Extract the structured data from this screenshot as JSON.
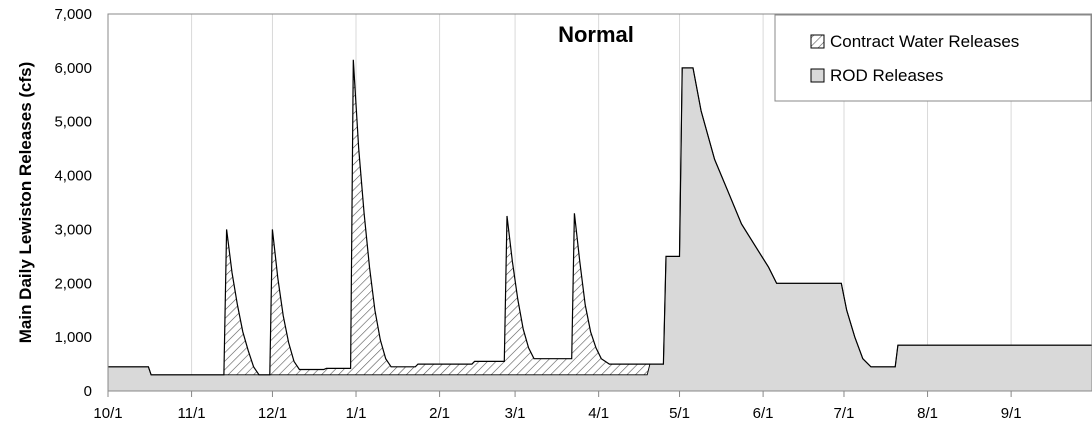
{
  "chart_data": {
    "type": "area",
    "title": "Normal",
    "ylabel": "Main Daily Lewiston Releases (cfs)",
    "xlabel": "",
    "x_tick_labels": [
      "10/1",
      "11/1",
      "12/1",
      "1/1",
      "2/1",
      "3/1",
      "4/1",
      "5/1",
      "6/1",
      "7/1",
      "8/1",
      "9/1"
    ],
    "x_tick_days": [
      0,
      31,
      61,
      92,
      123,
      151,
      182,
      212,
      243,
      273,
      304,
      335
    ],
    "xlim_days": [
      0,
      365
    ],
    "ylim": [
      0,
      7000
    ],
    "y_ticks": [
      0,
      1000,
      2000,
      3000,
      4000,
      5000,
      6000,
      7000
    ],
    "y_tick_labels": [
      "0",
      "1,000",
      "2,000",
      "3,000",
      "4,000",
      "5,000",
      "6,000",
      "7,000"
    ],
    "grid": "vertical",
    "legend_position": "top-right",
    "series": [
      {
        "name": "ROD Releases",
        "fill_color": "#d9d9d9",
        "pattern": "solid",
        "points": [
          [
            0,
            450
          ],
          [
            15,
            450
          ],
          [
            16,
            300
          ],
          [
            200,
            300
          ],
          [
            201,
            500
          ],
          [
            206,
            500
          ],
          [
            207,
            2500
          ],
          [
            212,
            2500
          ],
          [
            213,
            6000
          ],
          [
            217,
            6000
          ],
          [
            220,
            5200
          ],
          [
            225,
            4300
          ],
          [
            230,
            3700
          ],
          [
            235,
            3100
          ],
          [
            240,
            2700
          ],
          [
            245,
            2300
          ],
          [
            248,
            2000
          ],
          [
            272,
            2000
          ],
          [
            274,
            1500
          ],
          [
            277,
            1000
          ],
          [
            280,
            600
          ],
          [
            283,
            450
          ],
          [
            292,
            450
          ],
          [
            293,
            850
          ],
          [
            365,
            850
          ]
        ]
      },
      {
        "name": "Contract Water Releases",
        "fill_color": "#ffffff",
        "pattern": "hatched",
        "points": [
          [
            0,
            450
          ],
          [
            15,
            450
          ],
          [
            16,
            300
          ],
          [
            43,
            300
          ],
          [
            44,
            3000
          ],
          [
            46,
            2200
          ],
          [
            48,
            1600
          ],
          [
            50,
            1100
          ],
          [
            52,
            750
          ],
          [
            54,
            450
          ],
          [
            56,
            300
          ],
          [
            60,
            300
          ],
          [
            61,
            3000
          ],
          [
            63,
            2100
          ],
          [
            65,
            1400
          ],
          [
            67,
            900
          ],
          [
            69,
            550
          ],
          [
            71,
            400
          ],
          [
            80,
            400
          ],
          [
            81,
            420
          ],
          [
            90,
            420
          ],
          [
            91,
            6150
          ],
          [
            93,
            4500
          ],
          [
            95,
            3300
          ],
          [
            97,
            2300
          ],
          [
            99,
            1500
          ],
          [
            101,
            950
          ],
          [
            103,
            600
          ],
          [
            105,
            450
          ],
          [
            114,
            450
          ],
          [
            115,
            500
          ],
          [
            135,
            500
          ],
          [
            136,
            550
          ],
          [
            147,
            550
          ],
          [
            148,
            3250
          ],
          [
            150,
            2400
          ],
          [
            152,
            1700
          ],
          [
            154,
            1150
          ],
          [
            156,
            800
          ],
          [
            158,
            600
          ],
          [
            160,
            600
          ],
          [
            172,
            600
          ],
          [
            173,
            3300
          ],
          [
            175,
            2400
          ],
          [
            177,
            1600
          ],
          [
            179,
            1100
          ],
          [
            181,
            800
          ],
          [
            183,
            600
          ],
          [
            186,
            500
          ],
          [
            200,
            500
          ],
          [
            201,
            500
          ],
          [
            206,
            500
          ],
          [
            207,
            2500
          ],
          [
            212,
            2500
          ],
          [
            213,
            6000
          ],
          [
            217,
            6000
          ],
          [
            220,
            5200
          ],
          [
            225,
            4300
          ],
          [
            230,
            3700
          ],
          [
            235,
            3100
          ],
          [
            240,
            2700
          ],
          [
            245,
            2300
          ],
          [
            248,
            2000
          ],
          [
            272,
            2000
          ],
          [
            274,
            1500
          ],
          [
            277,
            1000
          ],
          [
            280,
            600
          ],
          [
            283,
            450
          ],
          [
            292,
            450
          ],
          [
            293,
            850
          ],
          [
            365,
            850
          ]
        ]
      }
    ]
  }
}
